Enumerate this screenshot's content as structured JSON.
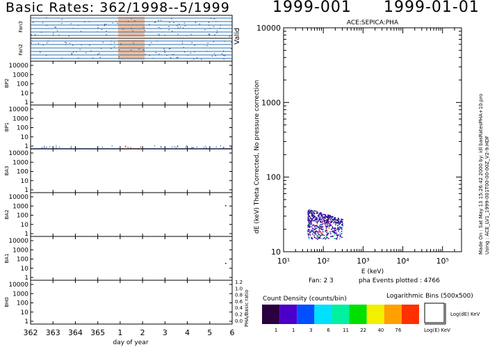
{
  "header": {
    "left_title": "Basic Rates: 362/1998--5/1999",
    "doy_label": "1999-001",
    "date_label": "1999-01-01"
  },
  "colors": {
    "fan_blue": "#1f6fb5",
    "rate_blue": "#2a5fb8",
    "highlight": "#f08a4b",
    "hist_purple": "#3a0aa8",
    "hist_green": "#00d050"
  },
  "chart_data": [
    {
      "type": "line",
      "panels": [
        {
          "name": "Fan3",
          "yticks": []
        },
        {
          "name": "Fan2",
          "yticks": []
        },
        {
          "name": "BP2",
          "yticks": [
            "10000",
            "1000",
            "100",
            "10",
            "1"
          ]
        },
        {
          "name": "BP1",
          "yticks": [
            "10000",
            "1000",
            "100",
            "10",
            "1"
          ]
        },
        {
          "name": "BA3",
          "yticks": [
            "10000",
            "1000",
            "100",
            "10",
            "1"
          ]
        },
        {
          "name": "BA2",
          "yticks": [
            "10000",
            "1000",
            "100",
            "10",
            "1"
          ]
        },
        {
          "name": "BA1",
          "yticks": [
            "10000",
            "1000",
            "100",
            "10",
            "1"
          ]
        },
        {
          "name": "BH0",
          "yticks": [
            "10000",
            "1000",
            "100",
            "10",
            "1"
          ]
        }
      ],
      "x_tick_labels": [
        "362",
        "363",
        "364",
        "365",
        "1",
        "2",
        "3",
        "4",
        "5",
        "6"
      ],
      "xlabel": "day of year",
      "valid_label": "Valid",
      "right_axis_label": "PHA/Basic ratio",
      "right_ticks": [
        "1.2",
        "1.0",
        "0.8",
        "0.6",
        "0.4",
        "0.2",
        "0.0"
      ],
      "highlight_days": [
        1,
        2
      ],
      "rate_level": 1
    },
    {
      "type": "scatter",
      "title": "ACE:SEPICA:PHA",
      "xlabel": "E (keV)",
      "ylabel": "dE (keV) Theta Corrected, No pressure correction",
      "x_scale": "log",
      "y_scale": "log",
      "xlim": [
        10,
        300000
      ],
      "ylim": [
        10,
        10000
      ],
      "x_tick_labels": [
        "10¹",
        "10²",
        "10³",
        "10⁴",
        "10⁵"
      ],
      "y_tick_labels": [
        "10",
        "100",
        "1000",
        "10000"
      ],
      "cluster": {
        "e_range": [
          40,
          300
        ],
        "de_range": [
          15,
          38
        ]
      },
      "fan_text": "Fan:  2 3",
      "events_text": "pha Events plotted : 4766",
      "side_text_1": "Made On : Sat May 13 15:26:42 2000   by: idl basRatesPHA+10.pro",
      "side_text_2": "Using : ACE_LV1_1999-001T00-00-00Z_V2-9.HDF"
    }
  ],
  "legend": {
    "title": "Count Density (counts/bin)",
    "bins_label": "Logarithmic Bins (500x500)",
    "colors": [
      "#2a0040",
      "#4a00c8",
      "#0050ff",
      "#00e0ff",
      "#00f0a0",
      "#00e000",
      "#f0f000",
      "#ffa000",
      "#ff3000"
    ],
    "labels": [
      "1",
      "1",
      "3",
      "6",
      "11",
      "22",
      "40",
      "76"
    ],
    "box_xlabel": "Log(E) KeV",
    "box_ylabel": "Log(dE) KeV"
  }
}
